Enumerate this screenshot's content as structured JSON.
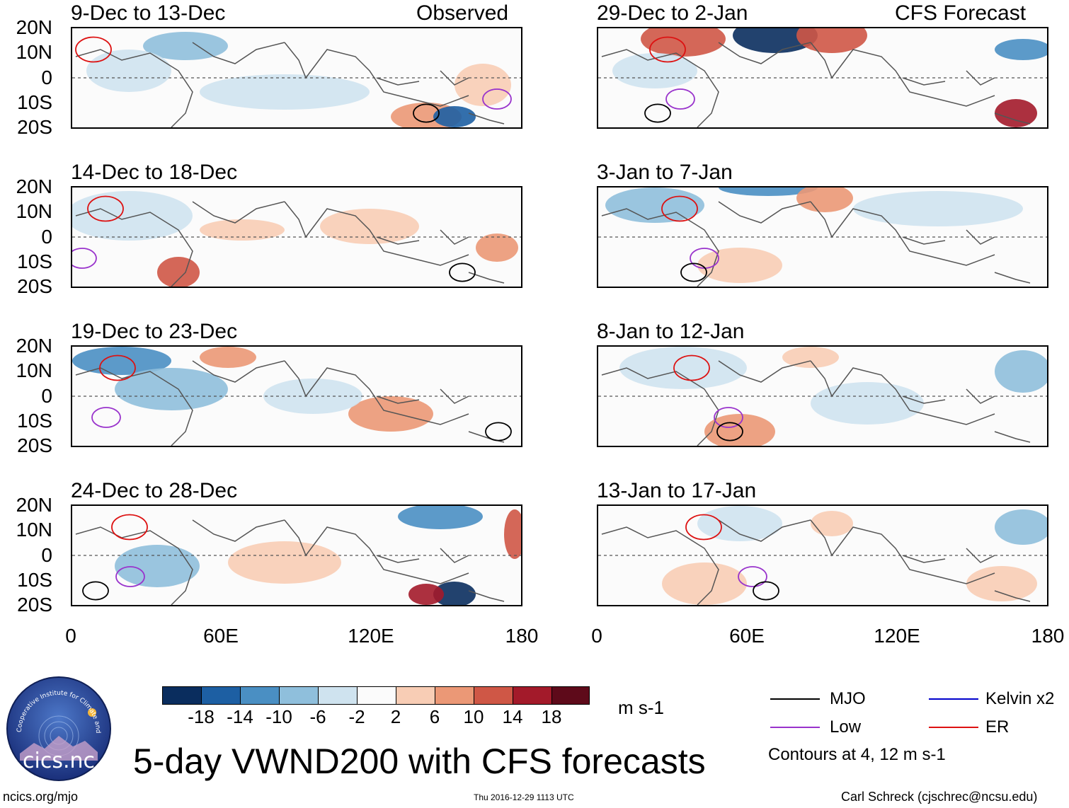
{
  "panels": {
    "left": [
      {
        "period": "9-Dec to 13-Dec",
        "tag": "Observed"
      },
      {
        "period": "14-Dec to 18-Dec",
        "tag": ""
      },
      {
        "period": "19-Dec to 23-Dec",
        "tag": ""
      },
      {
        "period": "24-Dec to 28-Dec",
        "tag": ""
      }
    ],
    "right": [
      {
        "period": "29-Dec to 2-Jan",
        "tag": "CFS Forecast"
      },
      {
        "period": "3-Jan to 7-Jan",
        "tag": ""
      },
      {
        "period": "8-Jan to 12-Jan",
        "tag": ""
      },
      {
        "period": "13-Jan to 17-Jan",
        "tag": ""
      }
    ]
  },
  "axes": {
    "lat_labels": [
      "20N",
      "10N",
      "0",
      "10S",
      "20S"
    ],
    "lon_labels": [
      "0",
      "60E",
      "120E",
      "180"
    ]
  },
  "colorbar": {
    "labels": [
      "-18",
      "-14",
      "-10",
      "-6",
      "-2",
      "2",
      "6",
      "10",
      "14",
      "18"
    ],
    "colors": [
      "#0a2d5e",
      "#1d5fa3",
      "#4a8fc3",
      "#8fbfdc",
      "#cfe3ef",
      "#fbfbfb",
      "#f8cdb5",
      "#eb9876",
      "#cf5746",
      "#a31a2a",
      "#5e0a1a"
    ],
    "units": "m s-1"
  },
  "legend": {
    "items": [
      {
        "label": "MJO",
        "color": "#000000"
      },
      {
        "label": "Kelvin x2",
        "color": "#0000cc"
      },
      {
        "label": "Low",
        "color": "#9933cc"
      },
      {
        "label": "ER",
        "color": "#dd1111"
      }
    ],
    "note": "Contours at 4, 12 m s-1"
  },
  "title": "5-day VWND200 with CFS forecasts",
  "logo": {
    "text": "cics.nc",
    "arc_text": "Cooperative Institute for Climate and Satellites"
  },
  "footer": {
    "url": "ncics.org/mjo",
    "timestamp": "Thu 2016-12-29 1113 UTC",
    "author": "Carl Schreck (cjschrec@ncsu.edu)"
  }
}
